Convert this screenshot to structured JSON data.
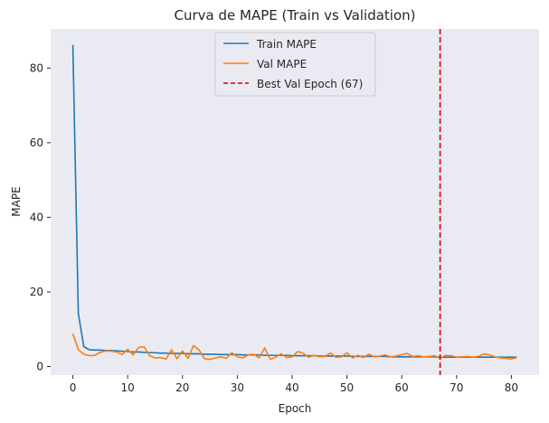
{
  "chart_data": {
    "type": "line",
    "title": "Curva de MAPE (Train vs Validation)",
    "xlabel": "Epoch",
    "ylabel": "MAPE",
    "xlim": [
      -4.05,
      85.05
    ],
    "ylim": [
      -2.3,
      90.5
    ],
    "xticks": [
      0,
      10,
      20,
      30,
      40,
      50,
      60,
      70,
      80
    ],
    "yticks": [
      0,
      20,
      40,
      60,
      80
    ],
    "grid": false,
    "background": "#eaeaf2",
    "legend_position": "top-center",
    "x": [
      0,
      1,
      2,
      3,
      4,
      5,
      6,
      7,
      8,
      9,
      10,
      11,
      12,
      13,
      14,
      15,
      16,
      17,
      18,
      19,
      20,
      21,
      22,
      23,
      24,
      25,
      26,
      27,
      28,
      29,
      30,
      31,
      32,
      33,
      34,
      35,
      36,
      37,
      38,
      39,
      40,
      41,
      42,
      43,
      44,
      45,
      46,
      47,
      48,
      49,
      50,
      51,
      52,
      53,
      54,
      55,
      56,
      57,
      58,
      59,
      60,
      61,
      62,
      63,
      64,
      65,
      66,
      67,
      68,
      69,
      70,
      71,
      72,
      73,
      74,
      75,
      76,
      77,
      78,
      79,
      80,
      81
    ],
    "series": [
      {
        "name": "Train MAPE",
        "color": "#1f77b4",
        "style": "solid",
        "values": [
          86.2,
          14.2,
          5.3,
          4.5,
          4.4,
          4.4,
          4.3,
          4.3,
          4.2,
          4.1,
          4.0,
          3.9,
          3.9,
          3.8,
          3.7,
          3.7,
          3.6,
          3.6,
          3.5,
          3.5,
          3.5,
          3.4,
          3.4,
          3.4,
          3.3,
          3.3,
          3.3,
          3.2,
          3.2,
          3.2,
          3.2,
          3.1,
          3.1,
          3.1,
          3.1,
          3.0,
          3.0,
          3.0,
          3.0,
          3.0,
          2.9,
          2.9,
          2.9,
          2.9,
          2.9,
          2.8,
          2.8,
          2.8,
          2.8,
          2.8,
          2.8,
          2.7,
          2.7,
          2.7,
          2.7,
          2.7,
          2.7,
          2.7,
          2.6,
          2.6,
          2.6,
          2.6,
          2.6,
          2.6,
          2.6,
          2.6,
          2.6,
          2.5,
          2.5,
          2.5,
          2.5,
          2.5,
          2.5,
          2.5,
          2.5,
          2.5,
          2.5,
          2.5,
          2.5,
          2.5,
          2.5,
          2.5
        ]
      },
      {
        "name": "Val MAPE",
        "color": "#ff7f0e",
        "style": "solid",
        "values": [
          8.8,
          4.5,
          3.3,
          2.9,
          3.0,
          3.8,
          4.2,
          4.1,
          3.9,
          3.2,
          4.6,
          3.1,
          5.1,
          5.3,
          2.9,
          2.3,
          2.4,
          2.0,
          4.5,
          2.1,
          4.2,
          2.2,
          5.6,
          4.5,
          2.1,
          1.9,
          2.3,
          2.6,
          2.2,
          3.7,
          2.6,
          2.3,
          3.1,
          3.3,
          2.3,
          5.0,
          1.9,
          2.5,
          3.4,
          2.4,
          2.6,
          4.0,
          3.6,
          2.5,
          3.0,
          2.6,
          2.7,
          3.6,
          2.5,
          2.6,
          3.7,
          2.3,
          3.0,
          2.4,
          3.3,
          2.6,
          2.8,
          3.1,
          2.6,
          2.8,
          3.2,
          3.5,
          2.7,
          2.9,
          2.6,
          2.7,
          2.9,
          2.2,
          3.0,
          2.9,
          2.5,
          2.6,
          2.7,
          2.5,
          2.7,
          3.4,
          3.1,
          2.6,
          2.3,
          2.2,
          2.0,
          2.4
        ]
      }
    ],
    "vlines": [
      {
        "name": "Best Val Epoch (67)",
        "x": 67,
        "color": "#e00000",
        "style": "dashed"
      }
    ]
  }
}
